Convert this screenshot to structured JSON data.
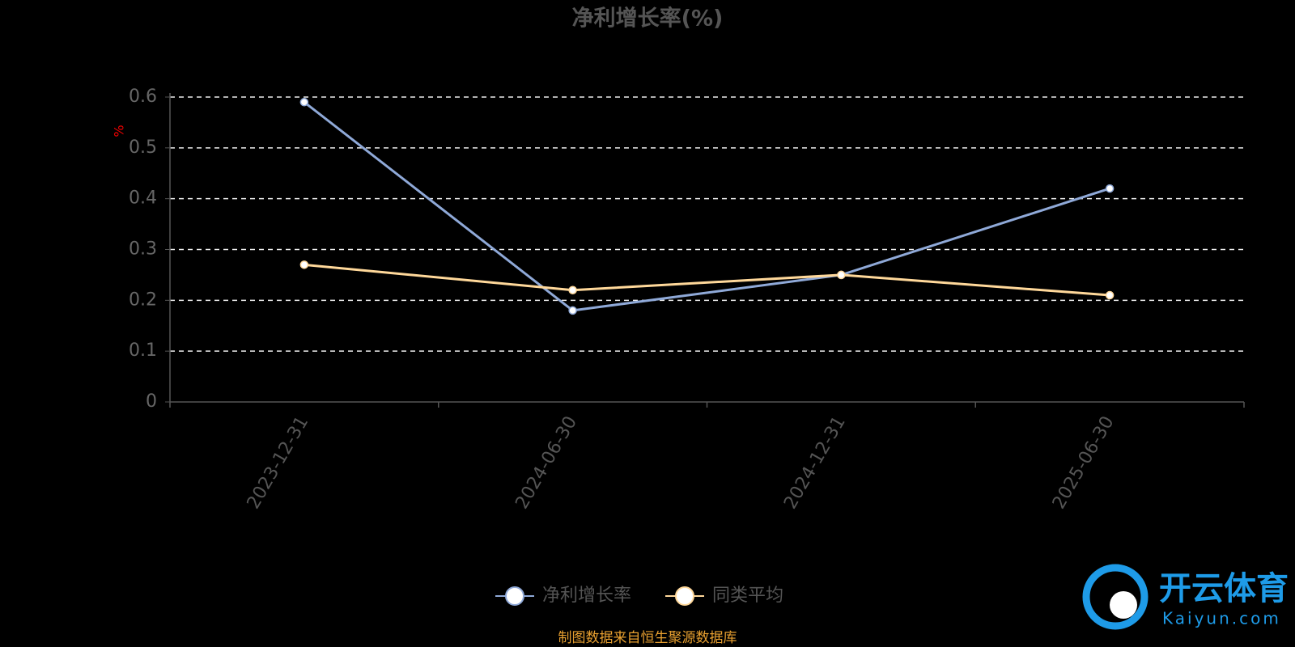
{
  "chart_data": {
    "type": "line",
    "title": "净利增长率(%)",
    "y_label": "%",
    "categories": [
      "2023-12-31",
      "2024-06-30",
      "2024-12-31",
      "2025-06-30"
    ],
    "series": [
      {
        "name": "净利增长率",
        "color": "#8fa9d8",
        "values": [
          0.59,
          0.18,
          0.25,
          0.42
        ]
      },
      {
        "name": "同类平均",
        "color": "#ffd89a",
        "values": [
          0.27,
          0.22,
          0.25,
          0.21
        ]
      }
    ],
    "ylim": [
      0,
      0.6
    ],
    "yticks": [
      0,
      0.1,
      0.2,
      0.3,
      0.4,
      0.5,
      0.6
    ],
    "grid": true,
    "legend": "bottom",
    "source": "制图数据来自恒生聚源数据库"
  },
  "watermark": {
    "name": "开云体育",
    "site": "Kaiyun.com"
  }
}
